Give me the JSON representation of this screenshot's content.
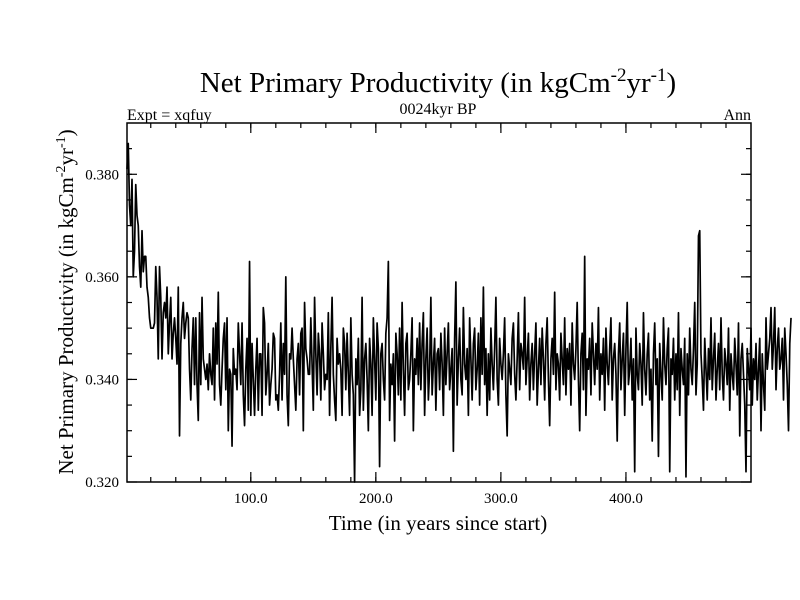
{
  "chart_data": {
    "type": "line",
    "title": {
      "main": "Net Primary Productivity (in kgCm",
      "sup1": "-2",
      "mid": "yr",
      "sup2": "-1",
      "end": ")"
    },
    "subtitle_left": "Expt = xqfuy",
    "subtitle_center": "0024kyr BP",
    "subtitle_right": "Ann",
    "xlabel": "Time (in years since start)",
    "ylabel": {
      "main": "Net Primary Productivity (in kgCm",
      "sup1": "-2",
      "mid": "yr",
      "sup2": "-1",
      "end": ")"
    },
    "xlim": [
      1,
      500
    ],
    "ylim": [
      0.32,
      0.39
    ],
    "xticks": [
      {
        "value": 100,
        "label": "100.0"
      },
      {
        "value": 200,
        "label": "200.0"
      },
      {
        "value": 300,
        "label": "300.0"
      },
      {
        "value": 400,
        "label": "400.0"
      }
    ],
    "yticks": [
      {
        "value": 0.32,
        "label": "0.320"
      },
      {
        "value": 0.34,
        "label": "0.340"
      },
      {
        "value": 0.36,
        "label": "0.360"
      },
      {
        "value": 0.38,
        "label": "0.380"
      }
    ],
    "x_minor_step": 20,
    "y_minor_step": 0.005,
    "grid": false,
    "series": [
      {
        "name": "Net Primary Productivity",
        "color": "#000000",
        "x_start": 1,
        "x_step": 1,
        "values": [
          0.381,
          0.386,
          0.374,
          0.37,
          0.379,
          0.36,
          0.365,
          0.378,
          0.372,
          0.37,
          0.362,
          0.358,
          0.369,
          0.361,
          0.364,
          0.364,
          0.358,
          0.356,
          0.352,
          0.35,
          0.35,
          0.35,
          0.351,
          0.362,
          0.356,
          0.344,
          0.362,
          0.356,
          0.344,
          0.353,
          0.355,
          0.352,
          0.358,
          0.345,
          0.351,
          0.356,
          0.344,
          0.349,
          0.352,
          0.348,
          0.343,
          0.358,
          0.329,
          0.347,
          0.352,
          0.355,
          0.348,
          0.351,
          0.353,
          0.352,
          0.342,
          0.336,
          0.346,
          0.352,
          0.339,
          0.352,
          0.339,
          0.332,
          0.353,
          0.339,
          0.356,
          0.344,
          0.342,
          0.34,
          0.343,
          0.338,
          0.345,
          0.341,
          0.339,
          0.35,
          0.336,
          0.351,
          0.343,
          0.357,
          0.339,
          0.335,
          0.342,
          0.348,
          0.351,
          0.338,
          0.352,
          0.33,
          0.342,
          0.341,
          0.327,
          0.346,
          0.341,
          0.342,
          0.338,
          0.351,
          0.345,
          0.339,
          0.351,
          0.337,
          0.331,
          0.342,
          0.348,
          0.334,
          0.363,
          0.333,
          0.347,
          0.34,
          0.333,
          0.342,
          0.348,
          0.334,
          0.345,
          0.345,
          0.333,
          0.354,
          0.351,
          0.337,
          0.341,
          0.347,
          0.335,
          0.339,
          0.342,
          0.349,
          0.348,
          0.336,
          0.337,
          0.334,
          0.341,
          0.351,
          0.336,
          0.347,
          0.341,
          0.36,
          0.337,
          0.331,
          0.345,
          0.344,
          0.35,
          0.344,
          0.339,
          0.334,
          0.344,
          0.347,
          0.337,
          0.349,
          0.35,
          0.33,
          0.355,
          0.346,
          0.344,
          0.341,
          0.341,
          0.352,
          0.343,
          0.334,
          0.356,
          0.345,
          0.337,
          0.349,
          0.345,
          0.336,
          0.351,
          0.345,
          0.338,
          0.341,
          0.34,
          0.353,
          0.333,
          0.346,
          0.356,
          0.341,
          0.336,
          0.332,
          0.348,
          0.343,
          0.345,
          0.342,
          0.333,
          0.35,
          0.347,
          0.338,
          0.349,
          0.341,
          0.333,
          0.352,
          0.341,
          0.337,
          0.32,
          0.344,
          0.339,
          0.348,
          0.333,
          0.338,
          0.356,
          0.334,
          0.344,
          0.347,
          0.34,
          0.33,
          0.348,
          0.343,
          0.333,
          0.352,
          0.344,
          0.336,
          0.351,
          0.346,
          0.323,
          0.345,
          0.347,
          0.34,
          0.336,
          0.349,
          0.352,
          0.363,
          0.332,
          0.343,
          0.339,
          0.345,
          0.328,
          0.349,
          0.345,
          0.337,
          0.35,
          0.336,
          0.355,
          0.342,
          0.333,
          0.347,
          0.349,
          0.338,
          0.34,
          0.345,
          0.352,
          0.33,
          0.344,
          0.341,
          0.348,
          0.339,
          0.351,
          0.338,
          0.347,
          0.353,
          0.333,
          0.344,
          0.35,
          0.336,
          0.342,
          0.356,
          0.337,
          0.343,
          0.348,
          0.334,
          0.345,
          0.346,
          0.338,
          0.349,
          0.343,
          0.333,
          0.35,
          0.339,
          0.345,
          0.351,
          0.338,
          0.342,
          0.346,
          0.326,
          0.348,
          0.359,
          0.335,
          0.344,
          0.35,
          0.34,
          0.337,
          0.354,
          0.343,
          0.34,
          0.346,
          0.333,
          0.352,
          0.344,
          0.336,
          0.347,
          0.35,
          0.338,
          0.342,
          0.349,
          0.335,
          0.352,
          0.341,
          0.358,
          0.339,
          0.346,
          0.333,
          0.345,
          0.336,
          0.35,
          0.343,
          0.338,
          0.346,
          0.356,
          0.34,
          0.335,
          0.348,
          0.343,
          0.34,
          0.345,
          0.352,
          0.337,
          0.329,
          0.345,
          0.342,
          0.339,
          0.348,
          0.351,
          0.341,
          0.336,
          0.344,
          0.353,
          0.338,
          0.347,
          0.345,
          0.342,
          0.356,
          0.339,
          0.344,
          0.349,
          0.336,
          0.343,
          0.347,
          0.338,
          0.345,
          0.351,
          0.335,
          0.342,
          0.348,
          0.339,
          0.35,
          0.344,
          0.336,
          0.347,
          0.352,
          0.34,
          0.331,
          0.344,
          0.348,
          0.341,
          0.357,
          0.338,
          0.345,
          0.343,
          0.336,
          0.349,
          0.344,
          0.339,
          0.352,
          0.337,
          0.346,
          0.342,
          0.347,
          0.335,
          0.351,
          0.343,
          0.34,
          0.346,
          0.355,
          0.34,
          0.33,
          0.345,
          0.349,
          0.338,
          0.364,
          0.333,
          0.344,
          0.342,
          0.348,
          0.337,
          0.351,
          0.345,
          0.339,
          0.347,
          0.342,
          0.354,
          0.336,
          0.345,
          0.341,
          0.348,
          0.334,
          0.35,
          0.343,
          0.339,
          0.346,
          0.352,
          0.336,
          0.344,
          0.347,
          0.341,
          0.328,
          0.345,
          0.351,
          0.338,
          0.344,
          0.349,
          0.333,
          0.346,
          0.355,
          0.339,
          0.342,
          0.348,
          0.336,
          0.344,
          0.322,
          0.35,
          0.341,
          0.338,
          0.347,
          0.343,
          0.335,
          0.353,
          0.342,
          0.337,
          0.345,
          0.349,
          0.336,
          0.342,
          0.328,
          0.345,
          0.351,
          0.339,
          0.344,
          0.325,
          0.347,
          0.341,
          0.336,
          0.352,
          0.343,
          0.339,
          0.346,
          0.35,
          0.322,
          0.344,
          0.341,
          0.348,
          0.336,
          0.345,
          0.338,
          0.353,
          0.333,
          0.346,
          0.342,
          0.339,
          0.348,
          0.321,
          0.345,
          0.337,
          0.35,
          0.342,
          0.339,
          0.346,
          0.355,
          0.337,
          0.343,
          0.368,
          0.369,
          0.345,
          0.34,
          0.334,
          0.348,
          0.342,
          0.336,
          0.346,
          0.34,
          0.352,
          0.338,
          0.344,
          0.349,
          0.336,
          0.342,
          0.347,
          0.338,
          0.352,
          0.341,
          0.336,
          0.346,
          0.343,
          0.339,
          0.35,
          0.334,
          0.345,
          0.341,
          0.338,
          0.348,
          0.343,
          0.337,
          0.351,
          0.329,
          0.344,
          0.347,
          0.341,
          0.335,
          0.322,
          0.346,
          0.342,
          0.338,
          0.35,
          0.335,
          0.344,
          0.34,
          0.347,
          0.336,
          0.342,
          0.348,
          0.33,
          0.345,
          0.339,
          0.334,
          0.352,
          0.342,
          0.345,
          0.348,
          0.354,
          0.342,
          0.347,
          0.354,
          0.338,
          0.346,
          0.35,
          0.342,
          0.344,
          0.348,
          0.336,
          0.35,
          0.345,
          0.339,
          0.33,
          0.347,
          0.352
        ]
      }
    ]
  }
}
